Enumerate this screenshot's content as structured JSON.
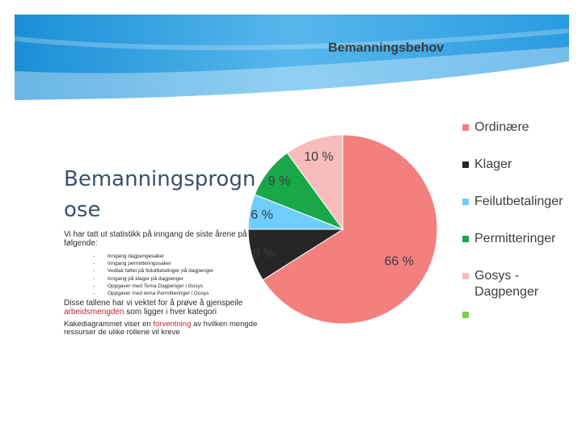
{
  "slide": {
    "title": "Bemanningsprogn\nose",
    "intro": "Vi har tatt ut statistikk på inngang de siste årene på følgende:",
    "bullets": [
      "Inngang dagpengesaker",
      "Inngang permitteringssaker",
      "Vedtak fattet på feilutbetalinger på dagpenger",
      "Inngang på klager på dagpenger",
      "Oppgaver med Tema Dagpenger i Gosys",
      "Oppgaver med tema Permitteringer i Gosys"
    ],
    "para1": {
      "before": "Disse tallene har vi vektet for å prøve å gjenspeile ",
      "highlight": "arbeidsmengden",
      "after": " som ligger i hver kategori"
    },
    "para2": {
      "before": "Kakediagrammet viser en ",
      "highlight": "forventning",
      "after": " av hvilken mengde ressurser de ulike rollene vil kreve"
    }
  },
  "colors": {
    "banner_dark": "#1a8fd6",
    "banner_light": "#6fc4f0",
    "highlight": "#c0282c"
  },
  "chart_data": {
    "type": "pie",
    "title": "Bemanningsbehov",
    "legend_position": "right",
    "slices": [
      {
        "label": "Ordinære",
        "value": 66,
        "display": "66 %",
        "color": "#f37f7f"
      },
      {
        "label": "Klager",
        "value": 9,
        "display": "9 %",
        "color": "#262626"
      },
      {
        "label": "Feilutbetalinger",
        "value": 6,
        "display": "6 %",
        "color": "#6fcdfb"
      },
      {
        "label": "Permitteringer",
        "value": 9,
        "display": "9 %",
        "color": "#18a849"
      },
      {
        "label": "Gosys -\nDagpenger",
        "value": 10,
        "display": "10 %",
        "color": "#f8bcbc"
      }
    ],
    "extra_legend_color": "#7ccf4f"
  }
}
